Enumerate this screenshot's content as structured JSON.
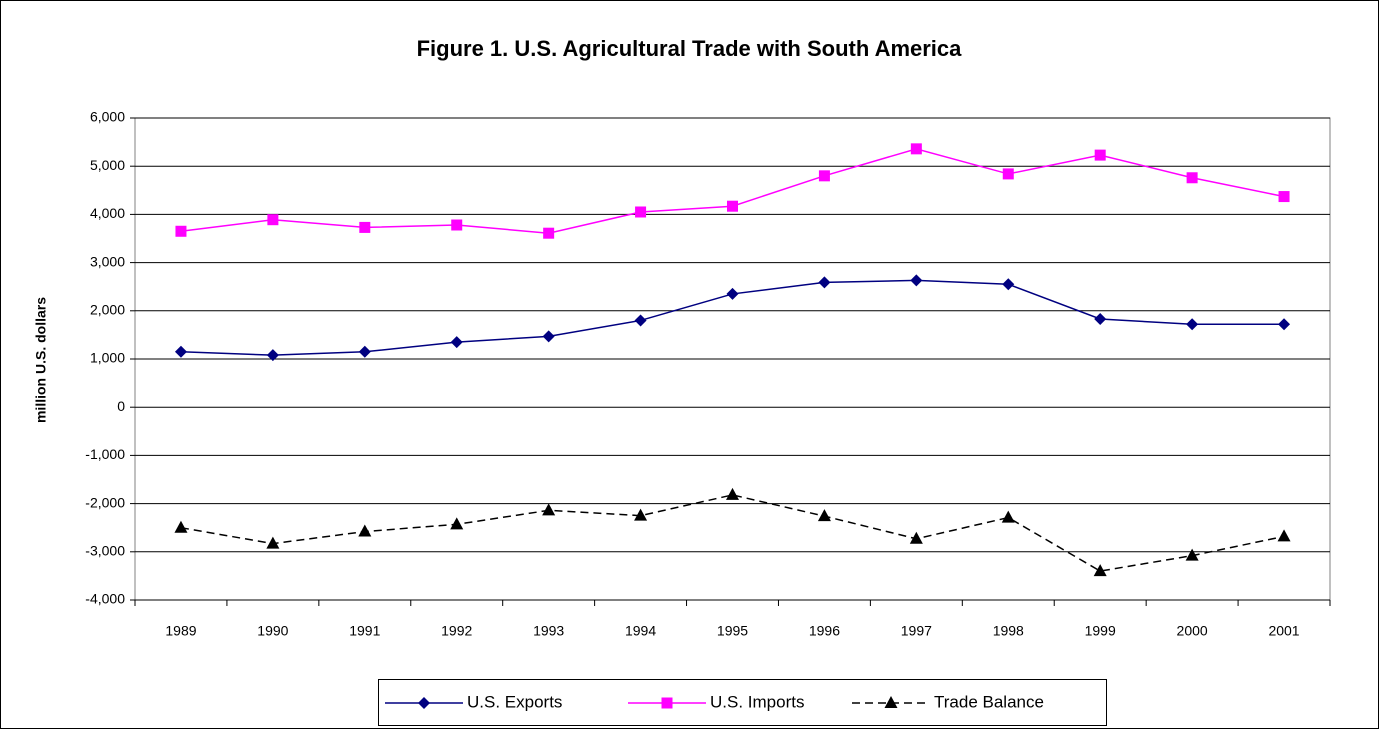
{
  "chart_data": {
    "type": "line",
    "title": "Figure 1.  U.S. Agricultural Trade with South America",
    "y_label": "million U.S. dollars",
    "categories": [
      "1989",
      "1990",
      "1991",
      "1992",
      "1993",
      "1994",
      "1995",
      "1996",
      "1997",
      "1998",
      "1999",
      "2000",
      "2001"
    ],
    "series": [
      {
        "name": "U.S. Exports",
        "color": "#000080",
        "marker": "diamond",
        "line_style": "solid",
        "values": [
          1150,
          1080,
          1150,
          1350,
          1470,
          1800,
          2350,
          2590,
          2630,
          2550,
          1830,
          1720,
          1720
        ]
      },
      {
        "name": "U.S. Imports",
        "color": "#ff00ff",
        "marker": "square",
        "line_style": "solid",
        "values": [
          3650,
          3890,
          3730,
          3780,
          3610,
          4050,
          4170,
          4800,
          5360,
          4840,
          5230,
          4760,
          4370
        ]
      },
      {
        "name": "Trade Balance",
        "color": "#000000",
        "marker": "triangle",
        "line_style": "dashed",
        "values": [
          -2500,
          -2830,
          -2580,
          -2430,
          -2140,
          -2250,
          -1820,
          -2260,
          -2730,
          -2290,
          -3400,
          -3080,
          -2680
        ]
      }
    ],
    "ylim": [
      -4000,
      6000
    ],
    "yticks": [
      {
        "value": -4000,
        "label": "-4,000"
      },
      {
        "value": -3000,
        "label": "-3,000"
      },
      {
        "value": -2000,
        "label": "-2,000"
      },
      {
        "value": -1000,
        "label": "-1,000"
      },
      0,
      {
        "value": 1000,
        "label": "1,000"
      },
      {
        "value": 2000,
        "label": "2,000"
      },
      {
        "value": 3000,
        "label": "3,000"
      },
      {
        "value": 4000,
        "label": "4,000"
      },
      {
        "value": 5000,
        "label": "5,000"
      },
      {
        "value": 6000,
        "label": "6,000"
      }
    ],
    "grid": true,
    "legend": "bottom"
  }
}
